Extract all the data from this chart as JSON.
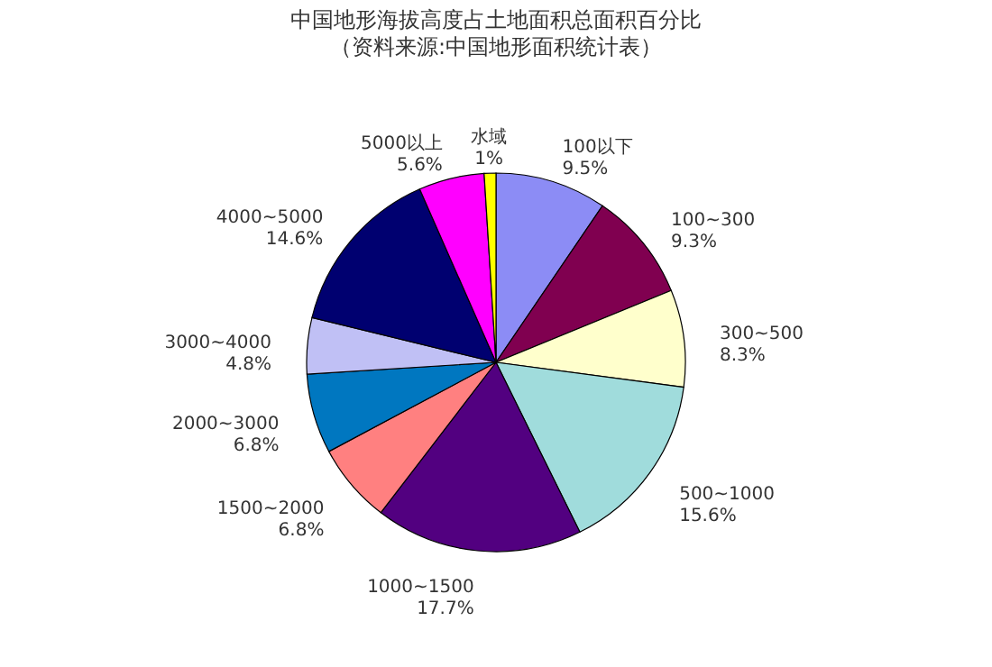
{
  "chart_data": {
    "type": "pie",
    "title": "中国地形海拔高度占土地面积总面积百分比",
    "subtitle": "（资料来源:中国地形面积统计表）",
    "categories": [
      "100以下",
      "100~300",
      "300~500",
      "500~1000",
      "1000~1500",
      "1500~2000",
      "2000~3000",
      "3000~4000",
      "4000~5000",
      "5000以上",
      "水域"
    ],
    "values": [
      9.5,
      9.3,
      8.3,
      15.6,
      17.7,
      6.8,
      6.8,
      4.8,
      14.6,
      5.6,
      1
    ],
    "value_labels": [
      "9.5%",
      "9.3%",
      "8.3%",
      "15.6%",
      "17.7%",
      "6.8%",
      "6.8%",
      "4.8%",
      "14.6%",
      "5.6%",
      "1%"
    ],
    "colors": [
      "#8c8cf5",
      "#800050",
      "#ffffcc",
      "#a0dcdc",
      "#520080",
      "#ff8080",
      "#0077c0",
      "#c0c0f5",
      "#000070",
      "#ff00ff",
      "#ffff00"
    ],
    "legend": false
  }
}
